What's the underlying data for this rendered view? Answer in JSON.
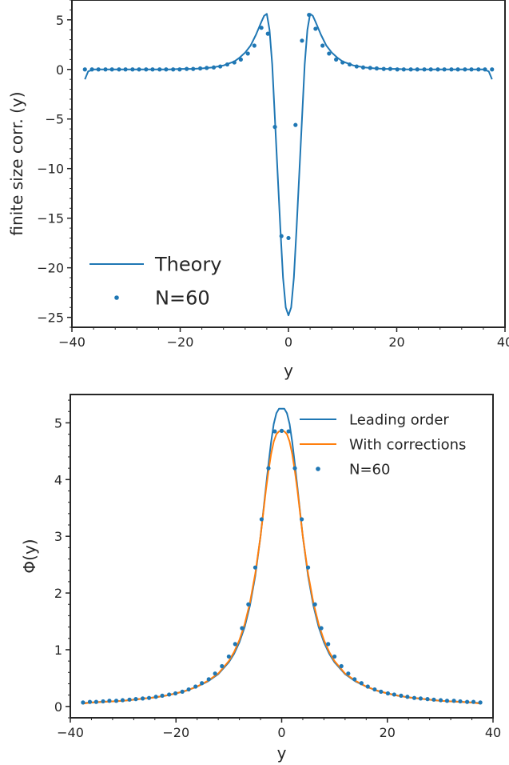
{
  "colors": {
    "blue": "#1f77b4",
    "orange": "#ff7f0e",
    "axis": "#262626"
  },
  "chart_data": [
    {
      "type": "line",
      "xlabel": "y",
      "ylabel": "finite size corr. (y)",
      "xlim": [
        -40,
        40
      ],
      "ylim": [
        -26,
        7
      ],
      "xticks": [
        -40,
        -20,
        0,
        20,
        40
      ],
      "yticks": [
        5,
        0,
        -5,
        -10,
        -15,
        -20,
        -25
      ],
      "xtick_labels": [
        "−40",
        "−20",
        "0",
        "20",
        "40"
      ],
      "ytick_labels": [
        "5",
        "0",
        "−5",
        "−10",
        "−15",
        "−20",
        "−25"
      ],
      "grid": false,
      "legend_position": "lower-left",
      "series": [
        {
          "name": "Theory",
          "kind": "line",
          "color": "#1f77b4",
          "x": [
            -37.6,
            -37,
            -36,
            -34,
            -32,
            -30,
            -28,
            -26,
            -24,
            -22,
            -20,
            -18,
            -16,
            -14,
            -12,
            -11,
            -10,
            -9,
            -8,
            -7,
            -6,
            -5,
            -4.5,
            -4,
            -3.5,
            -3,
            -2.5,
            -2,
            -1.5,
            -1,
            -0.5,
            0,
            0.5,
            1,
            1.5,
            2,
            2.5,
            3,
            3.5,
            4,
            4.5,
            5,
            6,
            7,
            8,
            9,
            10,
            11,
            12,
            14,
            16,
            18,
            20,
            22,
            24,
            26,
            28,
            30,
            32,
            34,
            36,
            37,
            37.6
          ],
          "y": [
            -1.0,
            -0.2,
            0.0,
            0.0,
            0.0,
            0.0,
            0.0,
            0.0,
            0.0,
            0.0,
            0.05,
            0.05,
            0.1,
            0.2,
            0.4,
            0.6,
            0.8,
            1.2,
            1.7,
            2.4,
            3.5,
            4.8,
            5.4,
            5.6,
            4.0,
            0.5,
            -5.0,
            -10.5,
            -16.0,
            -21.0,
            -24.0,
            -24.8,
            -24.0,
            -21.0,
            -16.0,
            -10.5,
            -5.0,
            0.5,
            4.0,
            5.6,
            5.4,
            4.8,
            3.5,
            2.4,
            1.7,
            1.2,
            0.8,
            0.6,
            0.4,
            0.2,
            0.1,
            0.05,
            0.05,
            0.0,
            0.0,
            0.0,
            0.0,
            0.0,
            0.0,
            0.0,
            0.0,
            -0.2,
            -1.0
          ]
        },
        {
          "name": "N=60",
          "kind": "scatter",
          "color": "#1f77b4",
          "x": [
            -37.6,
            -36.3,
            -35.1,
            -33.8,
            -32.6,
            -31.3,
            -30.1,
            -28.8,
            -27.6,
            -26.3,
            -25.1,
            -23.8,
            -22.6,
            -21.3,
            -20.1,
            -18.8,
            -17.6,
            -16.3,
            -15.1,
            -13.8,
            -12.6,
            -11.3,
            -10.0,
            -8.8,
            -7.5,
            -6.3,
            -5.0,
            -3.8,
            -2.5,
            -1.3,
            0.0,
            1.3,
            2.5,
            3.8,
            5.0,
            6.3,
            7.5,
            8.8,
            10.0,
            11.3,
            12.6,
            13.8,
            15.1,
            16.3,
            17.6,
            18.8,
            20.1,
            21.3,
            22.6,
            23.8,
            25.1,
            26.3,
            27.6,
            28.8,
            30.1,
            31.3,
            32.6,
            33.8,
            35.1,
            36.3,
            37.6
          ],
          "y": [
            0.0,
            0.0,
            0.0,
            0.0,
            0.0,
            0.0,
            0.0,
            0.0,
            0.0,
            0.0,
            0.0,
            0.0,
            0.0,
            0.0,
            0.0,
            0.05,
            0.05,
            0.1,
            0.15,
            0.2,
            0.3,
            0.5,
            0.7,
            1.0,
            1.6,
            2.4,
            4.2,
            3.6,
            -5.8,
            -16.8,
            -17.0,
            -5.6,
            2.9,
            5.5,
            4.1,
            2.4,
            1.6,
            1.0,
            0.7,
            0.5,
            0.3,
            0.2,
            0.15,
            0.1,
            0.05,
            0.05,
            0.0,
            0.0,
            0.0,
            0.0,
            0.0,
            0.0,
            0.0,
            0.0,
            0.0,
            0.0,
            0.0,
            0.0,
            0.0,
            0.0,
            0.0
          ]
        }
      ]
    },
    {
      "type": "line",
      "xlabel": "y",
      "ylabel": "Φ(y)",
      "xlim": [
        -40,
        40
      ],
      "ylim": [
        -0.2,
        5.5
      ],
      "xticks": [
        -40,
        -20,
        0,
        20,
        40
      ],
      "yticks": [
        0,
        1,
        2,
        3,
        4,
        5
      ],
      "xtick_labels": [
        "−40",
        "−20",
        "0",
        "20",
        "40"
      ],
      "ytick_labels": [
        "0",
        "1",
        "2",
        "3",
        "4",
        "5"
      ],
      "grid": false,
      "legend_position": "upper-right",
      "series": [
        {
          "name": "Leading order",
          "kind": "line",
          "color": "#1f77b4",
          "x": [
            -37.6,
            -36,
            -34,
            -32,
            -30,
            -28,
            -26,
            -24,
            -22,
            -20,
            -18,
            -16,
            -14,
            -12,
            -10,
            -9,
            -8,
            -7,
            -6,
            -5,
            -4,
            -3.5,
            -3,
            -2.5,
            -2,
            -1.5,
            -1,
            -0.5,
            0,
            0.5,
            1,
            1.5,
            2,
            2.5,
            3,
            3.5,
            4,
            5,
            6,
            7,
            8,
            9,
            10,
            12,
            14,
            16,
            18,
            20,
            22,
            24,
            26,
            28,
            30,
            32,
            34,
            36,
            37.6
          ],
          "y": [
            0.06,
            0.07,
            0.08,
            0.09,
            0.1,
            0.12,
            0.14,
            0.16,
            0.19,
            0.23,
            0.28,
            0.35,
            0.44,
            0.57,
            0.78,
            0.93,
            1.13,
            1.4,
            1.78,
            2.3,
            3.0,
            3.42,
            3.85,
            4.27,
            4.66,
            4.98,
            5.17,
            5.25,
            5.25,
            5.25,
            5.17,
            4.98,
            4.66,
            4.27,
            3.85,
            3.42,
            3.0,
            2.3,
            1.78,
            1.4,
            1.13,
            0.93,
            0.78,
            0.57,
            0.44,
            0.35,
            0.28,
            0.23,
            0.19,
            0.16,
            0.14,
            0.12,
            0.1,
            0.09,
            0.08,
            0.07,
            0.06
          ]
        },
        {
          "name": "With corrections",
          "kind": "line",
          "color": "#ff7f0e",
          "x": [
            -37.6,
            -36,
            -34,
            -32,
            -30,
            -28,
            -26,
            -24,
            -22,
            -20,
            -18,
            -16,
            -14,
            -12,
            -10,
            -9,
            -8,
            -7,
            -6,
            -5,
            -4,
            -3.5,
            -3,
            -2.5,
            -2,
            -1.5,
            -1,
            -0.5,
            0,
            0.5,
            1,
            1.5,
            2,
            2.5,
            3,
            3.5,
            4,
            5,
            6,
            7,
            8,
            9,
            10,
            12,
            14,
            16,
            18,
            20,
            22,
            24,
            26,
            28,
            30,
            32,
            34,
            36,
            37.6
          ],
          "y": [
            0.05,
            0.07,
            0.08,
            0.09,
            0.1,
            0.12,
            0.14,
            0.16,
            0.19,
            0.23,
            0.28,
            0.35,
            0.45,
            0.58,
            0.8,
            0.96,
            1.17,
            1.45,
            1.83,
            2.34,
            3.0,
            3.4,
            3.8,
            4.15,
            4.45,
            4.67,
            4.8,
            4.85,
            4.86,
            4.85,
            4.8,
            4.67,
            4.45,
            4.15,
            3.8,
            3.4,
            3.0,
            2.34,
            1.83,
            1.45,
            1.17,
            0.96,
            0.8,
            0.58,
            0.45,
            0.35,
            0.28,
            0.23,
            0.19,
            0.16,
            0.14,
            0.12,
            0.1,
            0.09,
            0.08,
            0.07,
            0.05
          ]
        },
        {
          "name": "N=60",
          "kind": "scatter",
          "color": "#1f77b4",
          "x": [
            -37.6,
            -36.3,
            -35.1,
            -33.8,
            -32.6,
            -31.3,
            -30.1,
            -28.8,
            -27.6,
            -26.3,
            -25.1,
            -23.8,
            -22.6,
            -21.3,
            -20.1,
            -18.8,
            -17.6,
            -16.3,
            -15.1,
            -13.8,
            -12.6,
            -11.3,
            -10.0,
            -8.8,
            -7.5,
            -6.3,
            -5.0,
            -3.8,
            -2.5,
            -1.3,
            0.0,
            1.3,
            2.5,
            3.8,
            5.0,
            6.3,
            7.5,
            8.8,
            10.0,
            11.3,
            12.6,
            13.8,
            15.1,
            16.3,
            17.6,
            18.8,
            20.1,
            21.3,
            22.6,
            23.8,
            25.1,
            26.3,
            27.6,
            28.8,
            30.1,
            31.3,
            32.6,
            33.8,
            35.1,
            36.3,
            37.6
          ],
          "y": [
            0.07,
            0.08,
            0.08,
            0.09,
            0.1,
            0.1,
            0.11,
            0.12,
            0.13,
            0.14,
            0.15,
            0.17,
            0.19,
            0.21,
            0.23,
            0.26,
            0.3,
            0.35,
            0.41,
            0.48,
            0.58,
            0.71,
            0.88,
            1.1,
            1.38,
            1.8,
            2.45,
            3.3,
            4.2,
            4.85,
            4.86,
            4.85,
            4.2,
            3.3,
            2.45,
            1.8,
            1.38,
            1.1,
            0.88,
            0.71,
            0.58,
            0.48,
            0.41,
            0.35,
            0.3,
            0.26,
            0.23,
            0.21,
            0.19,
            0.17,
            0.15,
            0.14,
            0.13,
            0.12,
            0.11,
            0.1,
            0.1,
            0.09,
            0.08,
            0.08,
            0.07
          ]
        }
      ]
    }
  ]
}
